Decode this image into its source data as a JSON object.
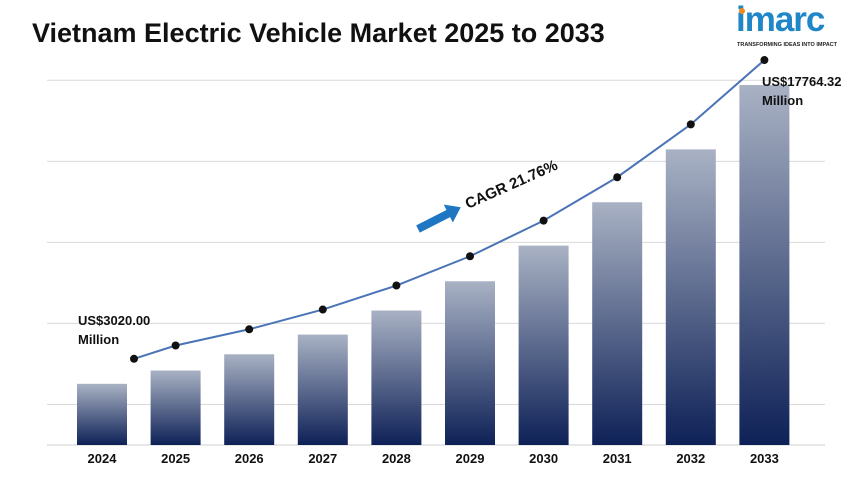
{
  "title": "Vietnam Electric Vehicle Market 2025 to 2033",
  "logo": {
    "word": "imarc",
    "tagline": "TRANSFORMING IDEAS INTO IMPACT"
  },
  "colors": {
    "bar_top": "#a9b2c4",
    "bar_bottom": "#0e2157",
    "line": "#4a74b6",
    "marker": "#111111",
    "arrow": "#1f77c4",
    "grid": "#d9d9d9"
  },
  "chart_data": {
    "type": "bar",
    "categories": [
      "2024",
      "2025",
      "2026",
      "2027",
      "2028",
      "2029",
      "2030",
      "2031",
      "2032",
      "2033"
    ],
    "values": [
      3020.0,
      3677,
      4477,
      5451,
      6637,
      8081,
      9840,
      11980,
      14589,
      17764.32
    ],
    "overlay_line": true,
    "grid": true,
    "ylim": [
      0,
      19000
    ],
    "start_label": {
      "line1": "US$3020.00",
      "line2": "Million"
    },
    "end_label": {
      "line1": "US$17764.32",
      "line2": "Million"
    },
    "annotation": "CAGR 21.76%"
  }
}
